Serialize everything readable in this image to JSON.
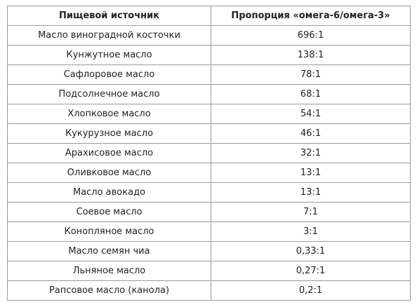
{
  "table": {
    "headers": [
      "Пищевой источник",
      "Пропорция «омега-6/омега-3»"
    ],
    "rows": [
      [
        "Масло виноградной косточки",
        "696:1"
      ],
      [
        "Кунжутное масло",
        "138:1"
      ],
      [
        "Сафлоровое масло",
        "78:1"
      ],
      [
        "Подсолнечное масло",
        "68:1"
      ],
      [
        "Хлопковое масло",
        "54:1"
      ],
      [
        "Кукурузное масло",
        "46:1"
      ],
      [
        "Арахисовое масло",
        "32:1"
      ],
      [
        "Оливковое масло",
        "13:1"
      ],
      [
        "Масло авокадо",
        "13:1"
      ],
      [
        "Соевое масло",
        "7:1"
      ],
      [
        "Конопляное масло",
        "3:1"
      ],
      [
        "Масло семян чиа",
        "0,33:1"
      ],
      [
        "Льняное масло",
        "0,27:1"
      ],
      [
        "Рапсовое масло (канола)",
        "0,2:1"
      ]
    ]
  }
}
